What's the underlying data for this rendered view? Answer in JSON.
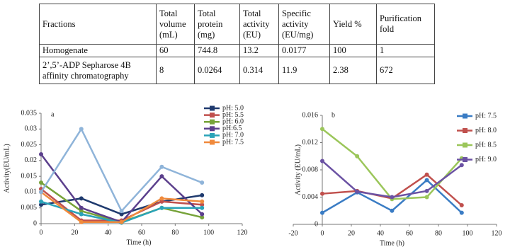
{
  "table": {
    "header": [
      "Fractions",
      "Total volume (mL)",
      "Total protein (mg)",
      "Total activity (EU)",
      "Specific activity (EU/mg)",
      "Yield %",
      "Purification fold"
    ],
    "rows": [
      [
        "Homogenate",
        "60",
        "744.8",
        "13.2",
        "0.0177",
        "100",
        "1"
      ],
      [
        "2’,5’-ADP Sepharose 4B affinity chromatography",
        "8",
        "0.0264",
        "0.314",
        "11.9",
        "2.38",
        "672"
      ]
    ]
  },
  "chart_data": [
    {
      "type": "line",
      "panel": "a",
      "x_label": "Time (h)",
      "y_label": "Activity(EU/mL)",
      "xlim": [
        0,
        120
      ],
      "xticks": [
        0,
        20,
        40,
        60,
        80,
        100,
        120
      ],
      "ylim": [
        0,
        0.035
      ],
      "yticks": [
        0,
        0.005,
        0.01,
        0.015,
        0.02,
        0.025,
        0.03,
        0.035
      ],
      "x": [
        0,
        24,
        48,
        72,
        96
      ],
      "series": [
        {
          "name": "pH: 5.0",
          "color": "#1f3a6e",
          "values": [
            0.006,
            0.008,
            0.003,
            0.007,
            0.009
          ]
        },
        {
          "name": "pH: 5.5",
          "color": "#c0504d",
          "values": [
            0.011,
            0.001,
            0.001,
            0.007,
            0.006
          ]
        },
        {
          "name": "pH: 6.0",
          "color": "#77a33a",
          "values": [
            0.013,
            0.004,
            0.0005,
            0.005,
            0.002
          ]
        },
        {
          "name": "pH:6.5",
          "color": "#5b3f8c",
          "values": [
            0.022,
            0.005,
            0.0005,
            0.015,
            0.003
          ]
        },
        {
          "name": "pH: 7.0",
          "color": "#2aa3b8",
          "values": [
            0.007,
            0.003,
            0.0003,
            0.005,
            0.005
          ]
        },
        {
          "name": "pH: 7.5",
          "color": "#f08a3c",
          "values": [
            0.01,
            0.0005,
            0.0005,
            0.008,
            0.007
          ]
        },
        {
          "color": "#8fb4d9",
          "values": [
            0.01,
            0.03,
            0.004,
            0.018,
            0.013
          ]
        }
      ]
    },
    {
      "type": "line",
      "panel": "b",
      "x_label": "Time (h)",
      "y_label": "Activity (EU/mL)",
      "xlim": [
        -20,
        120
      ],
      "xticks": [
        -20,
        0,
        20,
        40,
        60,
        80,
        100,
        120
      ],
      "ylim": [
        0,
        0.016
      ],
      "yticks": [
        0,
        0.004,
        0.008,
        0.012,
        0.016
      ],
      "x": [
        0,
        24,
        48,
        72,
        96
      ],
      "series": [
        {
          "name": "pH: 7.5",
          "color": "#3a7cc4",
          "values": [
            0.0017,
            0.0047,
            0.002,
            0.0065,
            0.0017
          ]
        },
        {
          "name": "pH: 8.0",
          "color": "#c0504d",
          "values": [
            0.0045,
            0.0049,
            0.0038,
            0.0073,
            0.0028
          ]
        },
        {
          "name": "pH: 8.5",
          "color": "#9bc65a",
          "values": [
            0.014,
            0.01,
            0.0037,
            0.004,
            0.0097
          ]
        },
        {
          "name": "pH: 9.0",
          "color": "#6b52a3",
          "values": [
            0.0093,
            0.0048,
            0.004,
            0.0049,
            0.0087
          ]
        }
      ]
    }
  ]
}
